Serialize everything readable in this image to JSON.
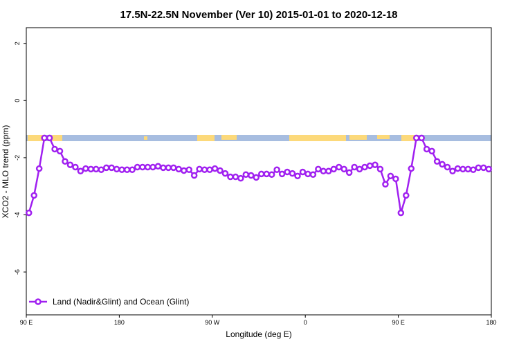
{
  "chart_data": {
    "type": "line",
    "title": "17.5N-22.5N November (Ver 10)   2015-01-01 to 2020-12-18",
    "x_label": "Longitude (deg E)",
    "y_label": "XCO2 - MLO trend (ppm)",
    "xlim": [
      90,
      540
    ],
    "ylim": [
      -7.5,
      2.55
    ],
    "xticks": [
      {
        "value": 90,
        "label": "90 E"
      },
      180,
      {
        "value": 270,
        "label": "90 W"
      },
      {
        "value": 360,
        "label": "0"
      },
      {
        "value": 450,
        "label": "90 E"
      },
      {
        "value": 540,
        "label": "180"
      }
    ],
    "yticks": [
      -6,
      -4,
      -2,
      0,
      2
    ],
    "legend": "bottom-left",
    "x": [
      92.5,
      97.5,
      102.5,
      107.5,
      112.5,
      117.5,
      122.5,
      127.5,
      132.5,
      137.5,
      142.5,
      147.5,
      152.5,
      157.5,
      162.5,
      167.5,
      172.5,
      177.5,
      182.5,
      187.5,
      192.5,
      197.5,
      202.5,
      207.5,
      212.5,
      217.5,
      222.5,
      227.5,
      232.5,
      237.5,
      242.5,
      247.5,
      252.5,
      257.5,
      262.5,
      267.5,
      272.5,
      277.5,
      282.5,
      287.5,
      292.5,
      297.5,
      302.5,
      307.5,
      312.5,
      317.5,
      322.5,
      327.5,
      332.5,
      337.5,
      342.5,
      347.5,
      352.5,
      357.5,
      362.5,
      367.5,
      372.5,
      377.5,
      382.5,
      387.5,
      392.5,
      397.5,
      402.5,
      407.5,
      412.5,
      417.5,
      422.5,
      427.5,
      432.5,
      437.5,
      442.5,
      447.5,
      452.5,
      457.5,
      462.5,
      467.5,
      472.5,
      477.5,
      482.5,
      487.5,
      492.5,
      497.5,
      502.5,
      507.5,
      512.5,
      517.5,
      522.5,
      527.5,
      532.5,
      537.5
    ],
    "series": [
      {
        "name": "Land (Nadir&Glint) and Ocean (Glint)",
        "color": "#a020f0",
        "values": [
          -3.93,
          -3.32,
          -2.38,
          -1.31,
          -1.31,
          -1.7,
          -1.77,
          -2.13,
          -2.25,
          -2.33,
          -2.47,
          -2.38,
          -2.4,
          -2.4,
          -2.42,
          -2.35,
          -2.35,
          -2.4,
          -2.42,
          -2.42,
          -2.42,
          -2.33,
          -2.33,
          -2.33,
          -2.33,
          -2.3,
          -2.35,
          -2.35,
          -2.35,
          -2.4,
          -2.45,
          -2.42,
          -2.62,
          -2.4,
          -2.42,
          -2.42,
          -2.38,
          -2.45,
          -2.55,
          -2.67,
          -2.67,
          -2.72,
          -2.59,
          -2.62,
          -2.69,
          -2.57,
          -2.57,
          -2.59,
          -2.42,
          -2.57,
          -2.5,
          -2.55,
          -2.64,
          -2.5,
          -2.57,
          -2.59,
          -2.4,
          -2.47,
          -2.47,
          -2.4,
          -2.33,
          -2.4,
          -2.52,
          -2.33,
          -2.4,
          -2.33,
          -2.28,
          -2.25,
          -2.4,
          -2.93,
          -2.64,
          -2.74,
          -3.93,
          -3.32,
          -2.38,
          -1.31,
          -1.31,
          -1.7,
          -1.77,
          -2.13,
          -2.23,
          -2.33,
          -2.47,
          -2.38,
          -2.4,
          -2.4,
          -2.42,
          -2.35,
          -2.35,
          -2.4
        ]
      }
    ]
  }
}
